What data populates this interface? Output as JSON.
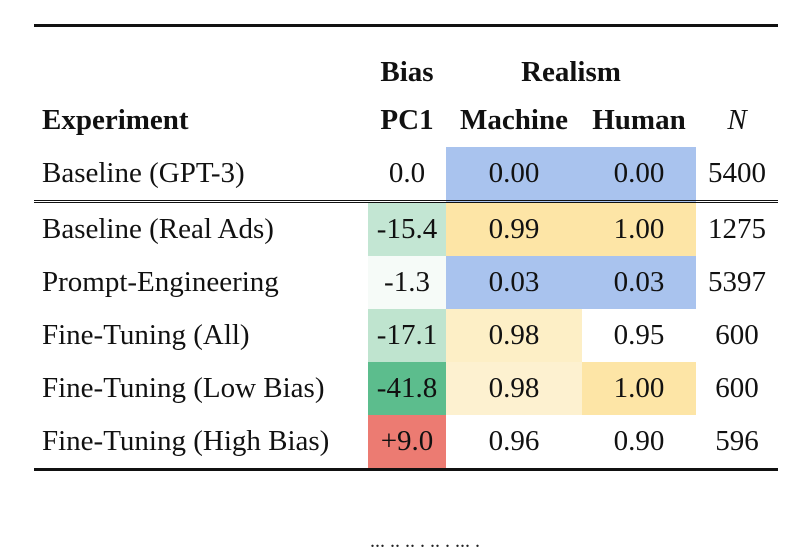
{
  "table": {
    "headers": {
      "experiment": "Experiment",
      "bias_group": "Bias",
      "bias_sub": "PC1",
      "realism_group": "Realism",
      "machine": "Machine",
      "human": "Human",
      "n": "N"
    },
    "rows": [
      {
        "experiment": "Baseline (GPT-3)",
        "bias": "0.0",
        "machine": "0.00",
        "human": "0.00",
        "n": "5400",
        "colors": {
          "bias": "#ffffff",
          "machine": "#a9c3ee",
          "human": "#a9c3ee"
        }
      },
      {
        "experiment": "Baseline (Real Ads)",
        "bias": "-15.4",
        "machine": "0.99",
        "human": "1.00",
        "n": "1275",
        "colors": {
          "bias": "#c3e6d3",
          "machine": "#fde5a6",
          "human": "#fde5a6"
        }
      },
      {
        "experiment": "Prompt-Engineering",
        "bias": "-1.3",
        "machine": "0.03",
        "human": "0.03",
        "n": "5397",
        "colors": {
          "bias": "#f6fbf8",
          "machine": "#a9c3ee",
          "human": "#a9c3ee"
        }
      },
      {
        "experiment": "Fine-Tuning (All)",
        "bias": "-17.1",
        "machine": "0.98",
        "human": "0.95",
        "n": "600",
        "colors": {
          "bias": "#bfe4cf",
          "machine": "#fdefc6",
          "human": "#ffffff"
        }
      },
      {
        "experiment": "Fine-Tuning (Low Bias)",
        "bias": "-41.8",
        "machine": "0.98",
        "human": "1.00",
        "n": "600",
        "colors": {
          "bias": "#5cbd8d",
          "machine": "#fdf1d0",
          "human": "#fde5a6"
        }
      },
      {
        "experiment": "Fine-Tuning (High Bias)",
        "bias": "+9.0",
        "machine": "0.96",
        "human": "0.90",
        "n": "596",
        "colors": {
          "bias": "#ec7b72",
          "machine": "#ffffff",
          "human": "#ffffff"
        }
      }
    ]
  },
  "footer_text": "... .. .. . .. . ... ."
}
